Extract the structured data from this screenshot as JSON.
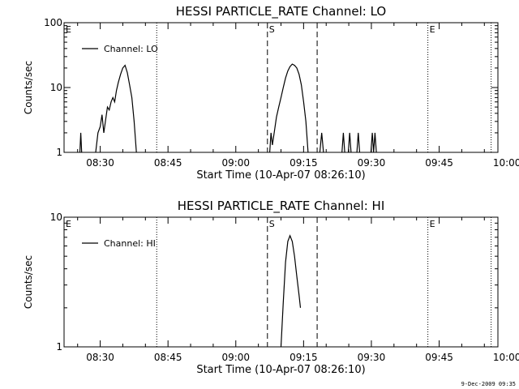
{
  "footer": {
    "timestamp": "9-Dec-2009 09:35"
  },
  "colors": {
    "background": "#ffffff",
    "foreground": "#000000"
  },
  "chart_data": [
    {
      "type": "line",
      "title": "HESSI PARTICLE_RATE Channel: LO",
      "xlabel": "Start Time (10-Apr-07 08:26:10)",
      "ylabel": "Counts/sec",
      "yscale": "log",
      "ylim": [
        1,
        100
      ],
      "ytick_labels": [
        "1",
        "10",
        "100"
      ],
      "xlim_minutes": [
        22,
        118
      ],
      "xtick_labels": [
        "08:30",
        "08:45",
        "09:00",
        "09:15",
        "09:30",
        "09:45",
        "10:00"
      ],
      "xticks_minutes": [
        30,
        45,
        60,
        75,
        90,
        105,
        120
      ],
      "legend": {
        "label": "Channel: LO",
        "position": "top-left"
      },
      "markers": [
        {
          "time_min": 22.0,
          "style": "none",
          "label": "E"
        },
        {
          "time_min": 42.5,
          "style": "dotted",
          "label": ""
        },
        {
          "time_min": 67.0,
          "style": "dashed",
          "label": "S"
        },
        {
          "time_min": 78.0,
          "style": "dashed",
          "label": ""
        },
        {
          "time_min": 102.5,
          "style": "dotted",
          "label": "E"
        },
        {
          "time_min": 116.5,
          "style": "dotted",
          "label": ""
        }
      ],
      "series": [
        {
          "name": "Channel: LO",
          "segments": [
            [
              [
                25.5,
                1
              ],
              [
                25.7,
                2
              ],
              [
                25.9,
                1
              ]
            ],
            [
              [
                29.0,
                1
              ],
              [
                29.5,
                2
              ],
              [
                30.0,
                2.5
              ],
              [
                30.4,
                3.8
              ],
              [
                30.8,
                2
              ],
              [
                31.2,
                3.2
              ],
              [
                31.6,
                5
              ],
              [
                32.0,
                4.5
              ],
              [
                32.4,
                6
              ],
              [
                32.8,
                7
              ],
              [
                33.2,
                6
              ],
              [
                33.6,
                9
              ],
              [
                34.0,
                12
              ],
              [
                34.5,
                16
              ],
              [
                35.0,
                20
              ],
              [
                35.5,
                22
              ],
              [
                36.0,
                17
              ],
              [
                36.5,
                11
              ],
              [
                37.0,
                7
              ],
              [
                37.5,
                3
              ],
              [
                38.0,
                1
              ]
            ],
            [
              [
                67.5,
                1
              ],
              [
                67.8,
                2
              ],
              [
                68.1,
                1.3
              ],
              [
                68.5,
                2
              ],
              [
                69.0,
                3.5
              ],
              [
                69.5,
                5
              ],
              [
                70.0,
                7
              ],
              [
                70.5,
                10
              ],
              [
                71.0,
                14
              ],
              [
                71.5,
                18
              ],
              [
                72.0,
                21
              ],
              [
                72.5,
                23
              ],
              [
                73.0,
                22
              ],
              [
                73.5,
                20
              ],
              [
                74.0,
                16
              ],
              [
                74.5,
                11
              ],
              [
                75.0,
                6
              ],
              [
                75.5,
                3
              ],
              [
                76.0,
                1
              ]
            ],
            [
              [
                78.6,
                1
              ],
              [
                79.0,
                2
              ],
              [
                79.4,
                1
              ]
            ],
            [
              [
                83.5,
                1
              ],
              [
                83.8,
                2
              ],
              [
                84.1,
                1
              ]
            ],
            [
              [
                84.9,
                1
              ],
              [
                85.2,
                2
              ],
              [
                85.5,
                1
              ]
            ],
            [
              [
                86.8,
                1
              ],
              [
                87.1,
                2
              ],
              [
                87.4,
                1
              ]
            ],
            [
              [
                89.9,
                1
              ],
              [
                90.2,
                2
              ],
              [
                90.5,
                1
              ],
              [
                90.8,
                2
              ],
              [
                91.1,
                1
              ]
            ]
          ]
        }
      ]
    },
    {
      "type": "line",
      "title": "HESSI PARTICLE_RATE Channel: HI",
      "xlabel": "Start Time (10-Apr-07 08:26:10)",
      "ylabel": "Counts/sec",
      "yscale": "log",
      "ylim": [
        1,
        10
      ],
      "ytick_labels": [
        "1",
        "10"
      ],
      "xlim_minutes": [
        22,
        118
      ],
      "xtick_labels": [
        "08:30",
        "08:45",
        "09:00",
        "09:15",
        "09:30",
        "09:45",
        "10:00"
      ],
      "xticks_minutes": [
        30,
        45,
        60,
        75,
        90,
        105,
        120
      ],
      "legend": {
        "label": "Channel: HI",
        "position": "top-left"
      },
      "markers": [
        {
          "time_min": 22.0,
          "style": "none",
          "label": "E"
        },
        {
          "time_min": 42.5,
          "style": "dotted",
          "label": ""
        },
        {
          "time_min": 67.0,
          "style": "dashed",
          "label": "S"
        },
        {
          "time_min": 78.0,
          "style": "dashed",
          "label": ""
        },
        {
          "time_min": 102.5,
          "style": "dotted",
          "label": "E"
        },
        {
          "time_min": 116.5,
          "style": "dotted",
          "label": ""
        }
      ],
      "series": [
        {
          "name": "Channel: HI",
          "segments": [
            [
              [
                70.0,
                1
              ],
              [
                70.5,
                2.2
              ],
              [
                71.0,
                4.5
              ],
              [
                71.5,
                6.5
              ],
              [
                72.0,
                7.2
              ],
              [
                72.5,
                6.5
              ],
              [
                73.0,
                5
              ],
              [
                73.5,
                3.5
              ],
              [
                74.0,
                2.5
              ],
              [
                74.3,
                2
              ]
            ]
          ]
        }
      ]
    }
  ]
}
